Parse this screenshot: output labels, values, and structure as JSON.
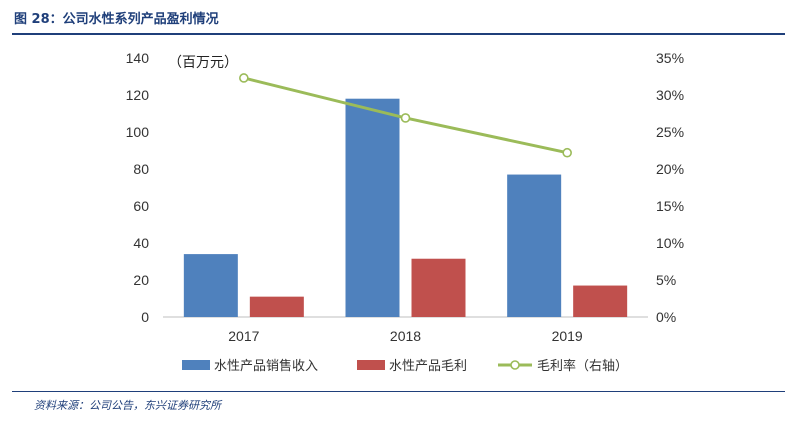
{
  "figure": {
    "title": "图 28：公司水性系列产品盈利情况",
    "source": "资料来源：公司公告，东兴证券研究所"
  },
  "colors": {
    "header": "#1f3f7a",
    "sales_bar": "#4f81bd",
    "profit_bar": "#c0504d",
    "margin_line": "#9bbb59"
  },
  "chart_data": {
    "type": "bar",
    "categories": [
      "2017",
      "2018",
      "2019"
    ],
    "unit_label": "（百万元）",
    "series": [
      {
        "name": "水性产品销售收入",
        "type": "bar",
        "axis": "left",
        "values": [
          34,
          118,
          77
        ]
      },
      {
        "name": "水性产品毛利",
        "type": "bar",
        "axis": "left",
        "values": [
          11,
          31.5,
          17
        ]
      },
      {
        "name": "毛利率（右轴）",
        "type": "line",
        "axis": "right",
        "values": [
          32.3,
          26.9,
          22.2
        ]
      }
    ],
    "y_left": {
      "min": 0,
      "max": 140,
      "ticks": [
        "0",
        "20",
        "40",
        "60",
        "80",
        "100",
        "120",
        "140"
      ]
    },
    "y_right": {
      "min": 0,
      "max": 35,
      "ticks": [
        "0%",
        "5%",
        "10%",
        "15%",
        "20%",
        "25%",
        "30%",
        "35%"
      ]
    },
    "grid": false,
    "legend_position": "bottom"
  }
}
